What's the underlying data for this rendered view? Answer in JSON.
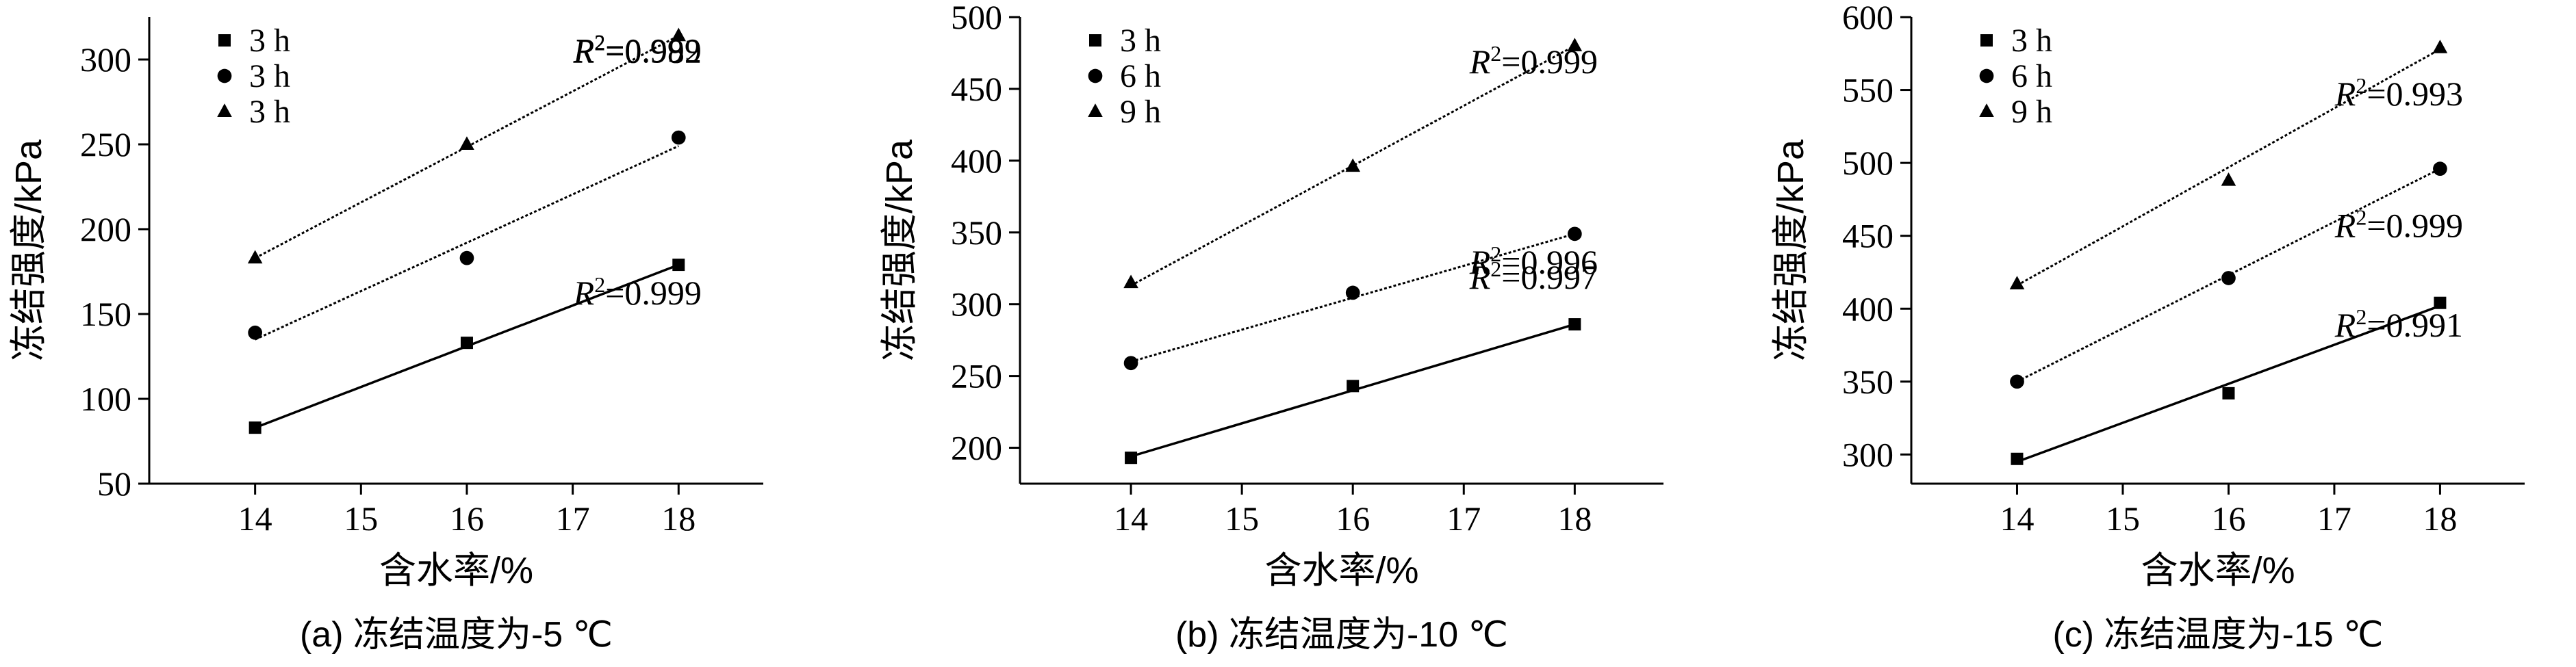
{
  "chart_data": [
    {
      "type": "scatter",
      "caption": "(a) 冻结温度为-5 ℃",
      "xlabel": "含水率/%",
      "ylabel": "冻结强度/kPa",
      "xlim": [
        13.0,
        18.8
      ],
      "ylim": [
        50,
        325
      ],
      "xticks": [
        14,
        15,
        16,
        17,
        18
      ],
      "yticks": [
        50,
        100,
        150,
        200,
        250,
        300
      ],
      "grid": false,
      "legend_position": "top-left",
      "series": [
        {
          "name": "3 h",
          "marker": "square",
          "line": "solid",
          "x": [
            14,
            16,
            18
          ],
          "y": [
            83,
            133,
            179
          ],
          "fit": [
            83,
            131,
            179
          ],
          "r2": "=0.999"
        },
        {
          "name": "3 h",
          "marker": "circle",
          "line": "dotted",
          "x": [
            14,
            16,
            18
          ],
          "y": [
            139,
            183,
            254
          ],
          "fit": [
            135,
            192,
            249
          ],
          "r2": "=0.982"
        },
        {
          "name": "3 h",
          "marker": "triangle",
          "line": "dotted",
          "x": [
            14,
            16,
            18
          ],
          "y": [
            183,
            250,
            314
          ],
          "fit": [
            183,
            248,
            314
          ],
          "r2": "=0.999"
        }
      ]
    },
    {
      "type": "scatter",
      "caption": "(b) 冻结温度为-10 ℃",
      "xlabel": "含水率/%",
      "ylabel": "冻结强度/kPa",
      "xlim": [
        13.0,
        18.8
      ],
      "ylim": [
        175,
        500
      ],
      "xticks": [
        14,
        15,
        16,
        17,
        18
      ],
      "yticks": [
        200,
        250,
        300,
        350,
        400,
        450,
        500
      ],
      "grid": false,
      "legend_position": "top-left",
      "series": [
        {
          "name": "3 h",
          "marker": "square",
          "line": "solid",
          "x": [
            14,
            16,
            18
          ],
          "y": [
            193,
            243,
            286
          ],
          "fit": [
            194,
            240,
            286
          ],
          "r2": "=0.997"
        },
        {
          "name": "6 h",
          "marker": "circle",
          "line": "dotted",
          "x": [
            14,
            16,
            18
          ],
          "y": [
            259,
            308,
            349
          ],
          "fit": [
            260,
            305,
            349
          ],
          "r2": "=0.996"
        },
        {
          "name": "9 h",
          "marker": "triangle",
          "line": "dotted",
          "x": [
            14,
            16,
            18
          ],
          "y": [
            315,
            396,
            480
          ],
          "fit": [
            313,
            396,
            480
          ],
          "r2": "=0.999"
        }
      ]
    },
    {
      "type": "scatter",
      "caption": "(c) 冻结温度为-15 ℃",
      "xlabel": "含水率/%",
      "ylabel": "冻结强度/kPa",
      "xlim": [
        13.0,
        18.8
      ],
      "ylim": [
        280,
        600
      ],
      "xticks": [
        14,
        15,
        16,
        17,
        18
      ],
      "yticks": [
        300,
        350,
        400,
        450,
        500,
        550,
        600
      ],
      "grid": false,
      "legend_position": "top-left",
      "series": [
        {
          "name": "3 h",
          "marker": "square",
          "line": "solid",
          "x": [
            14,
            16,
            18
          ],
          "y": [
            297,
            342,
            404
          ],
          "fit": [
            295,
            348,
            402
          ],
          "r2": "=0.991"
        },
        {
          "name": "6 h",
          "marker": "circle",
          "line": "dotted",
          "x": [
            14,
            16,
            18
          ],
          "y": [
            350,
            421,
            496
          ],
          "fit": [
            350,
            423,
            496
          ],
          "r2": "=0.999"
        },
        {
          "name": "9 h",
          "marker": "triangle",
          "line": "dotted",
          "x": [
            14,
            16,
            18
          ],
          "y": [
            417,
            488,
            579
          ],
          "fit": [
            416,
            497,
            578
          ],
          "r2": "=0.993"
        }
      ]
    }
  ]
}
